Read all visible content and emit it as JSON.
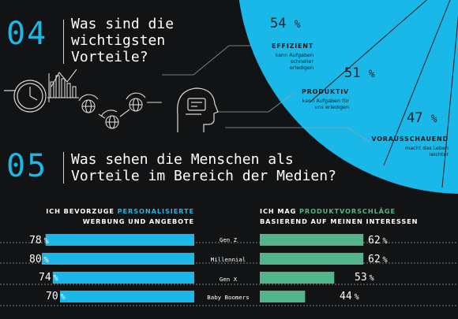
{
  "section04": {
    "number": "04",
    "question": "Was sind die\nwichtigsten\nVorteile?"
  },
  "section05": {
    "number": "05",
    "question": "Was sehen die Menschen als\nVorteile im Bereich der Medien?"
  },
  "colors": {
    "accent_blue": "#19b8e8",
    "accent_green": "#52b58a",
    "background": "#121314"
  },
  "chart_data": [
    {
      "type": "pie",
      "title": "",
      "slices": [
        {
          "value": 54,
          "label": "54",
          "unit": "%",
          "category": "EFFIZIENT",
          "desc": "kann Aufgaben\nschneller\nerledigen"
        },
        {
          "value": 51,
          "label": "51",
          "unit": "%",
          "category": "PRODUKTIV",
          "desc": "kann Aufgaben für\nuns erledigen"
        },
        {
          "value": 47,
          "label": "47",
          "unit": "%",
          "category": "VORAUSSCHAUEND",
          "desc": "macht das Leben\nleichter"
        }
      ]
    },
    {
      "type": "bar",
      "orientation": "horizontal",
      "title_parts": [
        "ICH BEVORZUGE ",
        "PERSONALISIERTE",
        "WERBUNG UND ANGEBOTE"
      ],
      "categories": [
        "Gen Z",
        "Millennial",
        "Gen X",
        "Baby Boomers"
      ],
      "values": [
        78,
        80,
        74,
        70
      ],
      "unit": "%",
      "color": "#19b8e8",
      "xlim": [
        0,
        100
      ]
    },
    {
      "type": "bar",
      "orientation": "horizontal",
      "title_parts": [
        "ICH MAG ",
        "PRODUKTVORSCHLÄGE",
        "BASIEREND AUF MEINEN INTERESSEN"
      ],
      "categories": [
        "Gen Z",
        "Millennial",
        "Gen X",
        "Baby Boomers"
      ],
      "values": [
        62,
        62,
        53,
        44
      ],
      "unit": "%",
      "color": "#52b58a",
      "xlim": [
        0,
        100
      ]
    }
  ],
  "icons": [
    "clock-icon",
    "bar-chart-icon",
    "cycle-globe-icon",
    "ai-head-icon"
  ]
}
